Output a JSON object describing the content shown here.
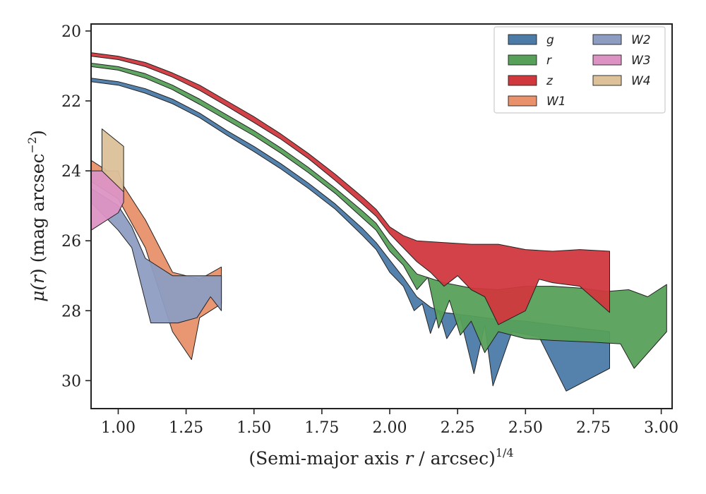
{
  "chart_data": {
    "type": "area",
    "title": "",
    "xlabel": "(Semi-major axis r / arcsec)",
    "xlabel_main": "(Semi-major axis ",
    "xlabel_var": "r",
    "xlabel_tail": " / arcsec)",
    "xlabel_sup": "1/4",
    "ylabel": "μ(r) (mag arcsec⁻²)",
    "ylabel_mu": "μ(",
    "ylabel_var": "r",
    "ylabel_mid": ") (mag arcsec",
    "ylabel_sup": "−2",
    "ylabel_close": ")",
    "xlim": [
      0.9,
      3.04
    ],
    "ylim": [
      30.8,
      19.8
    ],
    "y_inverted": true,
    "xticks": [
      "1.00",
      "1.25",
      "1.50",
      "1.75",
      "2.00",
      "2.25",
      "2.50",
      "2.75",
      "3.00"
    ],
    "xtick_values": [
      1.0,
      1.25,
      1.5,
      1.75,
      2.0,
      2.25,
      2.5,
      2.75,
      3.0
    ],
    "yticks": [
      "20",
      "22",
      "24",
      "26",
      "28",
      "30"
    ],
    "ytick_values": [
      20,
      22,
      24,
      26,
      28,
      30
    ],
    "grid": false,
    "legend_position": "top-right",
    "legend_columns": 2,
    "series": [
      {
        "name": "g",
        "color": "#4c7ba8",
        "upper": [
          [
            0.9,
            21.35
          ],
          [
            1.0,
            21.45
          ],
          [
            1.1,
            21.65
          ],
          [
            1.2,
            21.95
          ],
          [
            1.3,
            22.35
          ],
          [
            1.4,
            22.85
          ],
          [
            1.5,
            23.3
          ],
          [
            1.6,
            23.8
          ],
          [
            1.7,
            24.35
          ],
          [
            1.8,
            24.95
          ],
          [
            1.9,
            25.65
          ],
          [
            1.95,
            26.05
          ],
          [
            2.0,
            26.55
          ],
          [
            2.05,
            27.05
          ],
          [
            2.1,
            27.6
          ],
          [
            2.15,
            27.9
          ],
          [
            2.2,
            28.05
          ],
          [
            2.3,
            28.15
          ],
          [
            2.4,
            28.25
          ],
          [
            2.5,
            28.3
          ],
          [
            2.6,
            28.4
          ],
          [
            2.7,
            28.5
          ],
          [
            2.81,
            28.6
          ]
        ],
        "lower": [
          [
            0.9,
            21.45
          ],
          [
            1.0,
            21.55
          ],
          [
            1.1,
            21.78
          ],
          [
            1.2,
            22.08
          ],
          [
            1.3,
            22.48
          ],
          [
            1.4,
            22.98
          ],
          [
            1.5,
            23.45
          ],
          [
            1.6,
            23.95
          ],
          [
            1.7,
            24.5
          ],
          [
            1.8,
            25.1
          ],
          [
            1.9,
            25.85
          ],
          [
            1.95,
            26.25
          ],
          [
            2.0,
            26.9
          ],
          [
            2.05,
            27.3
          ],
          [
            2.09,
            28.0
          ],
          [
            2.12,
            27.8
          ],
          [
            2.15,
            28.65
          ],
          [
            2.18,
            28.0
          ],
          [
            2.21,
            28.8
          ],
          [
            2.26,
            28.2
          ],
          [
            2.31,
            29.8
          ],
          [
            2.35,
            28.4
          ],
          [
            2.38,
            30.15
          ],
          [
            2.45,
            28.6
          ],
          [
            2.55,
            28.75
          ],
          [
            2.65,
            30.3
          ],
          [
            2.81,
            29.65
          ]
        ]
      },
      {
        "name": "r",
        "color": "#57a05a",
        "upper": [
          [
            0.9,
            20.92
          ],
          [
            1.0,
            21.02
          ],
          [
            1.1,
            21.22
          ],
          [
            1.2,
            21.55
          ],
          [
            1.3,
            21.95
          ],
          [
            1.4,
            22.4
          ],
          [
            1.5,
            22.85
          ],
          [
            1.6,
            23.35
          ],
          [
            1.7,
            23.9
          ],
          [
            1.8,
            24.5
          ],
          [
            1.9,
            25.15
          ],
          [
            1.95,
            25.5
          ],
          [
            2.0,
            26.05
          ],
          [
            2.05,
            26.5
          ],
          [
            2.1,
            26.95
          ],
          [
            2.2,
            27.2
          ],
          [
            2.3,
            27.35
          ],
          [
            2.4,
            27.4
          ],
          [
            2.5,
            27.3
          ],
          [
            2.6,
            27.3
          ],
          [
            2.7,
            27.35
          ],
          [
            2.8,
            27.45
          ],
          [
            2.88,
            27.4
          ],
          [
            2.95,
            27.6
          ],
          [
            3.02,
            27.25
          ]
        ],
        "lower": [
          [
            0.9,
            21.02
          ],
          [
            1.0,
            21.12
          ],
          [
            1.1,
            21.35
          ],
          [
            1.2,
            21.68
          ],
          [
            1.3,
            22.1
          ],
          [
            1.4,
            22.55
          ],
          [
            1.5,
            23.0
          ],
          [
            1.6,
            23.5
          ],
          [
            1.7,
            24.05
          ],
          [
            1.8,
            24.65
          ],
          [
            1.9,
            25.35
          ],
          [
            1.95,
            25.7
          ],
          [
            2.0,
            26.3
          ],
          [
            2.05,
            26.7
          ],
          [
            2.1,
            27.4
          ],
          [
            2.14,
            27.05
          ],
          [
            2.18,
            28.5
          ],
          [
            2.22,
            27.7
          ],
          [
            2.26,
            28.7
          ],
          [
            2.3,
            28.3
          ],
          [
            2.35,
            29.2
          ],
          [
            2.4,
            28.6
          ],
          [
            2.5,
            28.8
          ],
          [
            2.6,
            28.85
          ],
          [
            2.75,
            28.9
          ],
          [
            2.85,
            28.95
          ],
          [
            2.9,
            29.65
          ],
          [
            3.02,
            28.6
          ]
        ]
      },
      {
        "name": "z",
        "color": "#d0383e",
        "upper": [
          [
            0.9,
            20.62
          ],
          [
            1.0,
            20.72
          ],
          [
            1.1,
            20.9
          ],
          [
            1.2,
            21.2
          ],
          [
            1.3,
            21.55
          ],
          [
            1.4,
            22.0
          ],
          [
            1.5,
            22.45
          ],
          [
            1.6,
            22.95
          ],
          [
            1.7,
            23.5
          ],
          [
            1.8,
            24.1
          ],
          [
            1.9,
            24.75
          ],
          [
            1.95,
            25.1
          ],
          [
            2.0,
            25.6
          ],
          [
            2.05,
            25.85
          ],
          [
            2.1,
            26.0
          ],
          [
            2.2,
            26.05
          ],
          [
            2.3,
            26.1
          ],
          [
            2.4,
            26.1
          ],
          [
            2.5,
            26.25
          ],
          [
            2.6,
            26.3
          ],
          [
            2.7,
            26.25
          ],
          [
            2.81,
            26.3
          ]
        ],
        "lower": [
          [
            0.9,
            20.72
          ],
          [
            1.0,
            20.82
          ],
          [
            1.1,
            21.02
          ],
          [
            1.2,
            21.32
          ],
          [
            1.3,
            21.7
          ],
          [
            1.4,
            22.15
          ],
          [
            1.5,
            22.62
          ],
          [
            1.6,
            23.1
          ],
          [
            1.7,
            23.65
          ],
          [
            1.8,
            24.28
          ],
          [
            1.9,
            24.95
          ],
          [
            1.95,
            25.3
          ],
          [
            2.0,
            25.8
          ],
          [
            2.05,
            26.2
          ],
          [
            2.1,
            26.6
          ],
          [
            2.15,
            26.9
          ],
          [
            2.2,
            27.3
          ],
          [
            2.25,
            27.0
          ],
          [
            2.3,
            27.4
          ],
          [
            2.35,
            27.6
          ],
          [
            2.4,
            28.4
          ],
          [
            2.5,
            28.0
          ],
          [
            2.55,
            27.1
          ],
          [
            2.6,
            27.2
          ],
          [
            2.7,
            27.3
          ],
          [
            2.81,
            28.05
          ]
        ]
      },
      {
        "name": "W1",
        "color": "#e8916a",
        "upper": [
          [
            0.9,
            23.7
          ],
          [
            1.0,
            24.2
          ],
          [
            1.1,
            25.4
          ],
          [
            1.2,
            26.9
          ],
          [
            1.3,
            27.1
          ],
          [
            1.38,
            26.75
          ]
        ],
        "lower": [
          [
            0.9,
            24.3
          ],
          [
            1.0,
            24.8
          ],
          [
            1.1,
            26.2
          ],
          [
            1.2,
            28.6
          ],
          [
            1.27,
            29.4
          ],
          [
            1.3,
            28.2
          ],
          [
            1.38,
            27.8
          ]
        ]
      },
      {
        "name": "W2",
        "color": "#8d9dc2",
        "upper": [
          [
            0.9,
            24.5
          ],
          [
            1.0,
            25.0
          ],
          [
            1.05,
            25.6
          ],
          [
            1.1,
            26.5
          ],
          [
            1.2,
            27.0
          ],
          [
            1.38,
            27.0
          ]
        ],
        "lower": [
          [
            0.9,
            24.9
          ],
          [
            1.0,
            25.7
          ],
          [
            1.05,
            26.2
          ],
          [
            1.12,
            28.35
          ],
          [
            1.22,
            28.35
          ],
          [
            1.29,
            28.2
          ],
          [
            1.34,
            27.6
          ],
          [
            1.38,
            28.0
          ]
        ]
      },
      {
        "name": "W3",
        "color": "#dc93c4",
        "upper": [
          [
            0.9,
            24.0
          ],
          [
            1.0,
            24.0
          ],
          [
            1.02,
            24.5
          ]
        ],
        "lower": [
          [
            0.9,
            25.7
          ],
          [
            1.0,
            25.2
          ],
          [
            1.02,
            24.9
          ]
        ]
      },
      {
        "name": "W4",
        "color": "#dcc199",
        "upper": [
          [
            0.94,
            22.8
          ],
          [
            1.02,
            23.3
          ]
        ],
        "lower": [
          [
            0.94,
            24.0
          ],
          [
            1.02,
            24.6
          ]
        ]
      }
    ]
  }
}
